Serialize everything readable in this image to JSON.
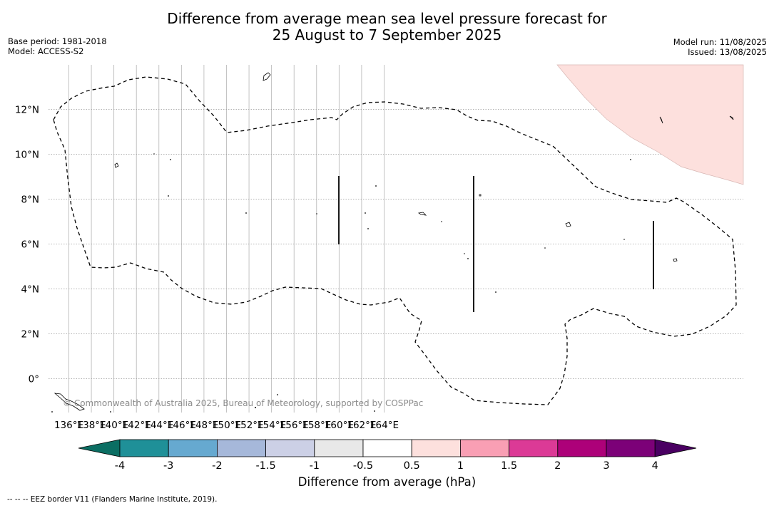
{
  "header": {
    "title_line1": "Difference from average mean sea level pressure forecast for",
    "title_line2": "25 August to 7 September 2025",
    "base_period": "Base period: 1981-2018",
    "model": "Model: ACCESS-S2",
    "model_run": "Model run: 11/08/2025",
    "issued": "Issued: 13/08/2025"
  },
  "map": {
    "lon_ticks": [
      "136°E",
      "138°E",
      "140°E",
      "142°E",
      "144°E",
      "146°E",
      "148°E",
      "150°E",
      "152°E",
      "154°E",
      "156°E",
      "158°E",
      "160°E",
      "162°E",
      "164°E"
    ],
    "lat_ticks": [
      "12°N",
      "10°N",
      "8°N",
      "6°N",
      "4°N",
      "2°N",
      "0°"
    ],
    "copyright": "© Commonwealth of Australia 2025, Bureau of Meteorology, supported by COSPPac",
    "anomaly_region_color": "#fde0dd"
  },
  "colorbar": {
    "label": "Difference from average (hPa)",
    "ticks": [
      "-4",
      "-3",
      "-2",
      "-1.5",
      "-1",
      "-0.5",
      "0.5",
      "1",
      "1.5",
      "2",
      "3",
      "4"
    ],
    "low_extend_color": "#0b6e63",
    "high_extend_color": "#4a0062",
    "colors": [
      "#1f9098",
      "#66a9d0",
      "#a6b8da",
      "#ccd0e6",
      "#e8e8e8",
      "#ffffff",
      "#fde0dd",
      "#f99fb4",
      "#dc3a96",
      "#ad0179",
      "#7c0178"
    ]
  },
  "footnote": "--  --  -- EEZ border V11 (Flanders Marine Institute, 2019)."
}
